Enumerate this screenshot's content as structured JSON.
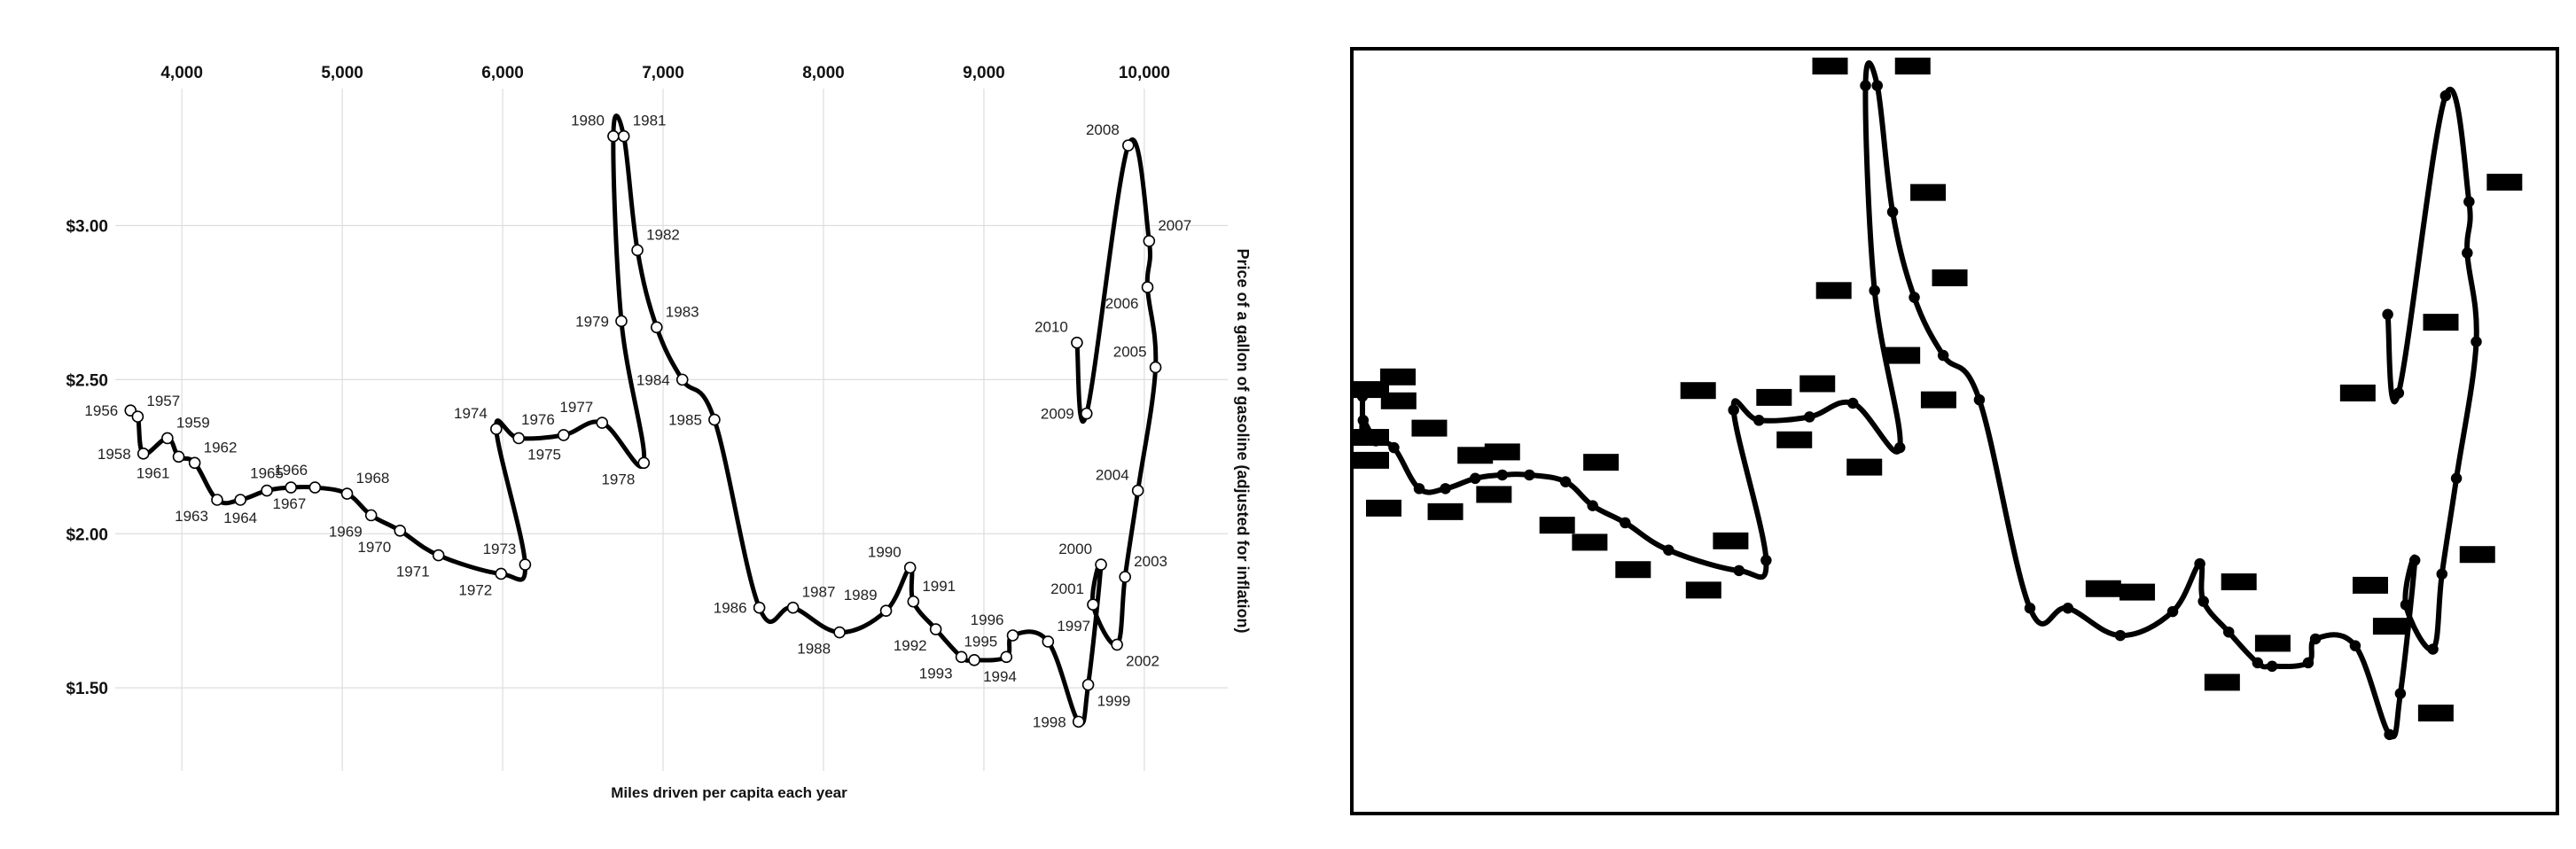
{
  "chart_data": [
    {
      "type": "line",
      "subtype": "connected-scatter",
      "title": "",
      "xlabel": "Miles driven per capita each year",
      "ylabel": "Price of a gallon of gasoline (adjusted for inflation)",
      "x_axis_position": "top",
      "y_axis_title_position": "right",
      "xlim": [
        3640,
        10520
      ],
      "ylim": [
        1.23,
        3.43
      ],
      "grid": true,
      "x_ticks": [
        4000,
        5000,
        6000,
        7000,
        8000,
        9000,
        10000
      ],
      "x_tick_labels": [
        "4,000",
        "5,000",
        "6,000",
        "7,000",
        "8,000",
        "9,000",
        "10,000"
      ],
      "y_ticks": [
        1.5,
        2.0,
        2.5,
        3.0
      ],
      "y_tick_labels": [
        "$1.50",
        "$2.00",
        "$2.50",
        "$3.00"
      ],
      "line_color": "#000000",
      "marker_fill": "#ffffff",
      "points": [
        {
          "year": "1956",
          "x": 3680,
          "y": 2.4,
          "label_pos": "left"
        },
        {
          "year": "1957",
          "x": 3725,
          "y": 2.38,
          "label_pos": "above-right"
        },
        {
          "year": "1958",
          "x": 3760,
          "y": 2.26,
          "label_pos": "left"
        },
        {
          "year": "1959",
          "x": 3910,
          "y": 2.31,
          "label_pos": "above-right"
        },
        {
          "year": "1961",
          "x": 3980,
          "y": 2.25,
          "label_pos": "below-left"
        },
        {
          "year": "1962",
          "x": 4080,
          "y": 2.23,
          "label_pos": "above-right"
        },
        {
          "year": "1963",
          "x": 4220,
          "y": 2.11,
          "label_pos": "below-left"
        },
        {
          "year": "1964",
          "x": 4365,
          "y": 2.11,
          "label_pos": "below"
        },
        {
          "year": "1965",
          "x": 4530,
          "y": 2.14,
          "label_pos": "above"
        },
        {
          "year": "1966",
          "x": 4680,
          "y": 2.15,
          "label_pos": "above"
        },
        {
          "year": "1967",
          "x": 4830,
          "y": 2.15,
          "label_pos": "below-left"
        },
        {
          "year": "1968",
          "x": 5030,
          "y": 2.13,
          "label_pos": "above-right"
        },
        {
          "year": "1969",
          "x": 5180,
          "y": 2.06,
          "label_pos": "below-left"
        },
        {
          "year": "1970",
          "x": 5360,
          "y": 2.01,
          "label_pos": "below-left"
        },
        {
          "year": "1971",
          "x": 5600,
          "y": 1.93,
          "label_pos": "below-left"
        },
        {
          "year": "1972",
          "x": 5990,
          "y": 1.87,
          "label_pos": "below-left"
        },
        {
          "year": "1973",
          "x": 6140,
          "y": 1.9,
          "label_pos": "above-left"
        },
        {
          "year": "1974",
          "x": 5960,
          "y": 2.34,
          "label_pos": "above-left"
        },
        {
          "year": "1975",
          "x": 6100,
          "y": 2.31,
          "label_pos": "below-right"
        },
        {
          "year": "1976",
          "x": 6380,
          "y": 2.32,
          "label_pos": "above-left"
        },
        {
          "year": "1977",
          "x": 6620,
          "y": 2.36,
          "label_pos": "above-left"
        },
        {
          "year": "1978",
          "x": 6880,
          "y": 2.23,
          "label_pos": "below-left"
        },
        {
          "year": "1979",
          "x": 6740,
          "y": 2.69,
          "label_pos": "left"
        },
        {
          "year": "1980",
          "x": 6690,
          "y": 3.29,
          "label_pos": "above-left"
        },
        {
          "year": "1981",
          "x": 6755,
          "y": 3.29,
          "label_pos": "above-right"
        },
        {
          "year": "1982",
          "x": 6840,
          "y": 2.92,
          "label_pos": "above-right"
        },
        {
          "year": "1983",
          "x": 6960,
          "y": 2.67,
          "label_pos": "above-right"
        },
        {
          "year": "1984",
          "x": 7120,
          "y": 2.5,
          "label_pos": "left"
        },
        {
          "year": "1985",
          "x": 7320,
          "y": 2.37,
          "label_pos": "left"
        },
        {
          "year": "1986",
          "x": 7600,
          "y": 1.76,
          "label_pos": "left"
        },
        {
          "year": "1987",
          "x": 7810,
          "y": 1.76,
          "label_pos": "above-right"
        },
        {
          "year": "1988",
          "x": 8100,
          "y": 1.68,
          "label_pos": "below-left"
        },
        {
          "year": "1989",
          "x": 8390,
          "y": 1.75,
          "label_pos": "above-left"
        },
        {
          "year": "1990",
          "x": 8540,
          "y": 1.89,
          "label_pos": "above-left"
        },
        {
          "year": "1991",
          "x": 8560,
          "y": 1.78,
          "label_pos": "above-right"
        },
        {
          "year": "1992",
          "x": 8700,
          "y": 1.69,
          "label_pos": "below-left"
        },
        {
          "year": "1993",
          "x": 8860,
          "y": 1.6,
          "label_pos": "below-left"
        },
        {
          "year": "1994",
          "x": 8940,
          "y": 1.59,
          "label_pos": "below-right"
        },
        {
          "year": "1995",
          "x": 9140,
          "y": 1.6,
          "label_pos": "above-left"
        },
        {
          "year": "1996",
          "x": 9180,
          "y": 1.67,
          "label_pos": "above-left"
        },
        {
          "year": "1997",
          "x": 9400,
          "y": 1.65,
          "label_pos": "above-right"
        },
        {
          "year": "1998",
          "x": 9590,
          "y": 1.39,
          "label_pos": "left"
        },
        {
          "year": "1999",
          "x": 9650,
          "y": 1.51,
          "label_pos": "below-right"
        },
        {
          "year": "2000",
          "x": 9730,
          "y": 1.9,
          "label_pos": "above-left"
        },
        {
          "year": "2001",
          "x": 9680,
          "y": 1.77,
          "label_pos": "above-left"
        },
        {
          "year": "2002",
          "x": 9830,
          "y": 1.64,
          "label_pos": "below-right"
        },
        {
          "year": "2003",
          "x": 9880,
          "y": 1.86,
          "label_pos": "above-right"
        },
        {
          "year": "2004",
          "x": 9960,
          "y": 2.14,
          "label_pos": "above-left"
        },
        {
          "year": "2005",
          "x": 10070,
          "y": 2.54,
          "label_pos": "above-left"
        },
        {
          "year": "2006",
          "x": 10020,
          "y": 2.8,
          "label_pos": "below-left"
        },
        {
          "year": "2007",
          "x": 10030,
          "y": 2.95,
          "label_pos": "above-right"
        },
        {
          "year": "2008",
          "x": 9900,
          "y": 3.26,
          "label_pos": "above-left"
        },
        {
          "year": "2009",
          "x": 9640,
          "y": 2.39,
          "label_pos": "left"
        },
        {
          "year": "2010",
          "x": 9580,
          "y": 2.62,
          "label_pos": "above-left"
        }
      ]
    },
    {
      "type": "line",
      "subtype": "connected-scatter-redacted",
      "title": "",
      "xlabel": "",
      "ylabel": "",
      "frame": true,
      "line_color": "#000000",
      "marker_fill": "#000000",
      "redaction_color": "#000000",
      "note": "Same series as the first chart with year labels blacked out and no axes"
    }
  ]
}
